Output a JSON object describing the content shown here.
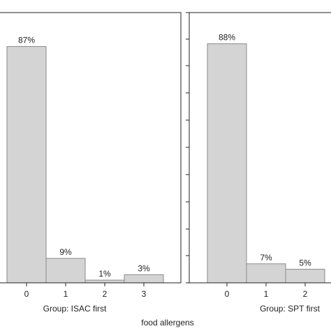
{
  "chart_data": {
    "type": "bar",
    "xlabel": "food allergens",
    "colors": {
      "bar_fill": "#d4d4d4",
      "bar_stroke": "#8a8a8a",
      "frame": "#222222",
      "text": "#222222"
    },
    "panels": [
      {
        "group_label": "Group: ISAC first",
        "categories": [
          "0",
          "1",
          "2",
          "3"
        ],
        "values": [
          87,
          9,
          1,
          3
        ],
        "data_labels": [
          "87%",
          "9%",
          "1%",
          "3%"
        ]
      },
      {
        "group_label": "Group: SPT first",
        "categories": [
          "0",
          "1",
          "2"
        ],
        "values": [
          88,
          7,
          5
        ],
        "data_labels": [
          "88%",
          "7%",
          "5%"
        ]
      }
    ]
  }
}
